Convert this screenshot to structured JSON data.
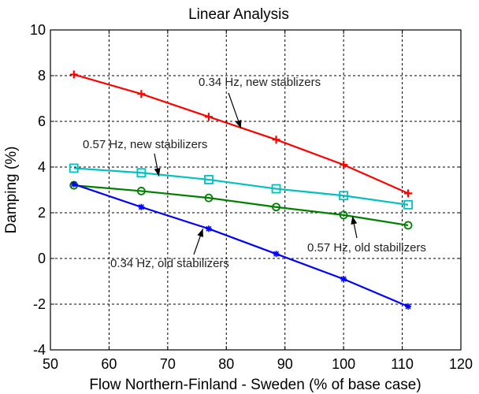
{
  "chart_data": {
    "type": "line",
    "title": "Linear Analysis",
    "xlabel": "Flow Northern-Finland - Sweden (% of base case)",
    "ylabel": "Damping (%)",
    "xlim": [
      50,
      120
    ],
    "ylim": [
      -4,
      10
    ],
    "xticks": [
      50,
      60,
      70,
      80,
      90,
      100,
      110,
      120
    ],
    "yticks": [
      -4,
      -2,
      0,
      2,
      4,
      6,
      8,
      10
    ],
    "grid": true,
    "x": [
      54,
      65.5,
      77,
      88.5,
      100,
      111
    ],
    "series": [
      {
        "values": [
          8.05,
          7.2,
          6.2,
          5.2,
          4.1,
          2.85
        ],
        "color": "#ff0000",
        "marker": "plus"
      },
      {
        "values": [
          3.95,
          3.75,
          3.45,
          3.05,
          2.75,
          2.35
        ],
        "color": "#00c0c0",
        "marker": "square"
      },
      {
        "values": [
          3.2,
          2.95,
          2.65,
          2.25,
          1.9,
          1.45
        ],
        "color": "#008000",
        "marker": "circle"
      },
      {
        "values": [
          3.25,
          2.25,
          1.3,
          0.2,
          -0.9,
          -2.1
        ],
        "color": "#0000ff",
        "marker": "star"
      }
    ],
    "annotations": [
      {
        "text": "0.34 Hz, new stablizers",
        "anchor_x": 82.5,
        "anchor_y": 5.7
      },
      {
        "text": "0.57 Hz, new stabilizers",
        "anchor_x": 68.5,
        "anchor_y": 3.6
      },
      {
        "text": "0.57 Hz, old stabilizers",
        "anchor_x": 101.5,
        "anchor_y": 1.85
      },
      {
        "text": "0.34 Hz, old stabilizers",
        "anchor_x": 76,
        "anchor_y": 1.3
      }
    ]
  }
}
